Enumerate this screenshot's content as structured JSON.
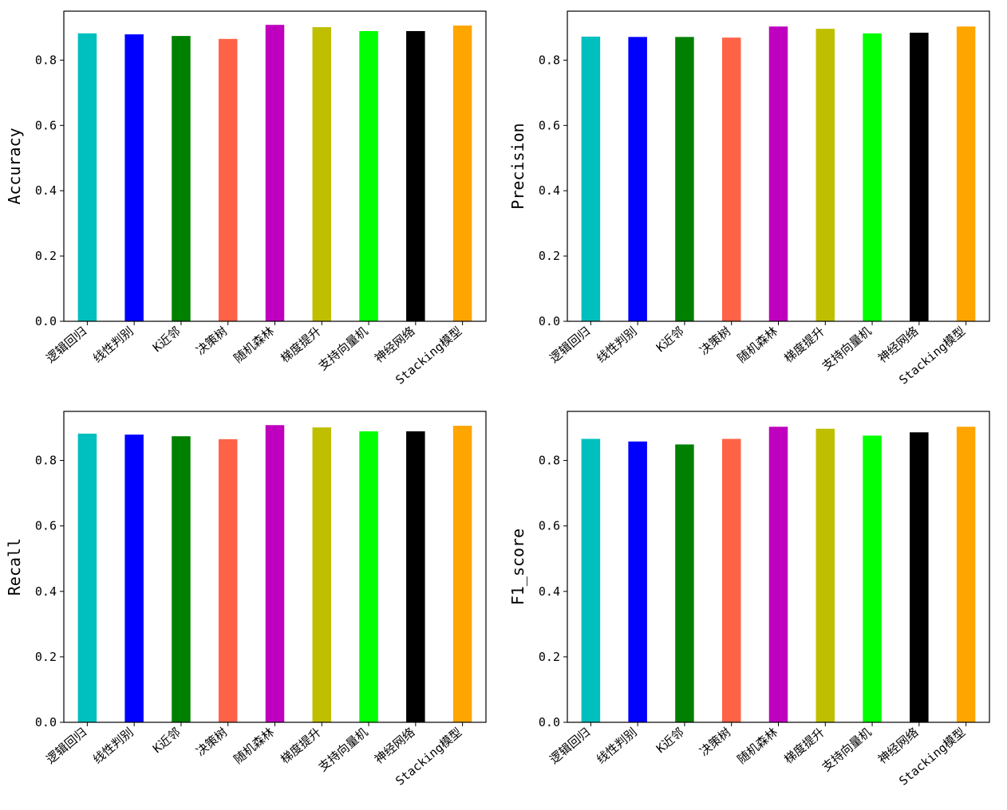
{
  "chart_data": [
    {
      "type": "bar",
      "ylabel": "Accuracy",
      "categories": [
        "逻辑回归",
        "线性判别",
        "K近邻",
        "决策树",
        "随机森林",
        "梯度提升",
        "支持向量机",
        "神经网络",
        "Stacking模型"
      ],
      "values": [
        0.882,
        0.879,
        0.874,
        0.865,
        0.908,
        0.901,
        0.889,
        0.889,
        0.906
      ],
      "ylim": [
        0,
        0.95
      ],
      "yticks": [
        "0.0",
        "0.2",
        "0.4",
        "0.6",
        "0.8"
      ]
    },
    {
      "type": "bar",
      "ylabel": "Precision",
      "categories": [
        "逻辑回归",
        "线性判别",
        "K近邻",
        "决策树",
        "随机森林",
        "梯度提升",
        "支持向量机",
        "神经网络",
        "Stacking模型"
      ],
      "values": [
        0.872,
        0.871,
        0.871,
        0.869,
        0.903,
        0.896,
        0.882,
        0.884,
        0.903
      ],
      "ylim": [
        0,
        0.95
      ],
      "yticks": [
        "0.0",
        "0.2",
        "0.4",
        "0.6",
        "0.8"
      ]
    },
    {
      "type": "bar",
      "ylabel": "Recall",
      "categories": [
        "逻辑回归",
        "线性判别",
        "K近邻",
        "决策树",
        "随机森林",
        "梯度提升",
        "支持向量机",
        "神经网络",
        "Stacking模型"
      ],
      "values": [
        0.882,
        0.879,
        0.874,
        0.865,
        0.908,
        0.901,
        0.889,
        0.889,
        0.906
      ],
      "ylim": [
        0,
        0.95
      ],
      "yticks": [
        "0.0",
        "0.2",
        "0.4",
        "0.6",
        "0.8"
      ]
    },
    {
      "type": "bar",
      "ylabel": "F1_score",
      "categories": [
        "逻辑回归",
        "线性判别",
        "K近邻",
        "决策树",
        "随机森林",
        "梯度提升",
        "支持向量机",
        "神经网络",
        "Stacking模型"
      ],
      "values": [
        0.866,
        0.858,
        0.849,
        0.866,
        0.903,
        0.897,
        0.876,
        0.886,
        0.903
      ],
      "ylim": [
        0,
        0.95
      ],
      "yticks": [
        "0.0",
        "0.2",
        "0.4",
        "0.6",
        "0.8"
      ]
    }
  ],
  "colors": [
    "#00bfbf",
    "#0000ff",
    "#008000",
    "#ff6347",
    "#bf00bf",
    "#bfbf00",
    "#00ff00",
    "#000000",
    "#ffa500"
  ]
}
